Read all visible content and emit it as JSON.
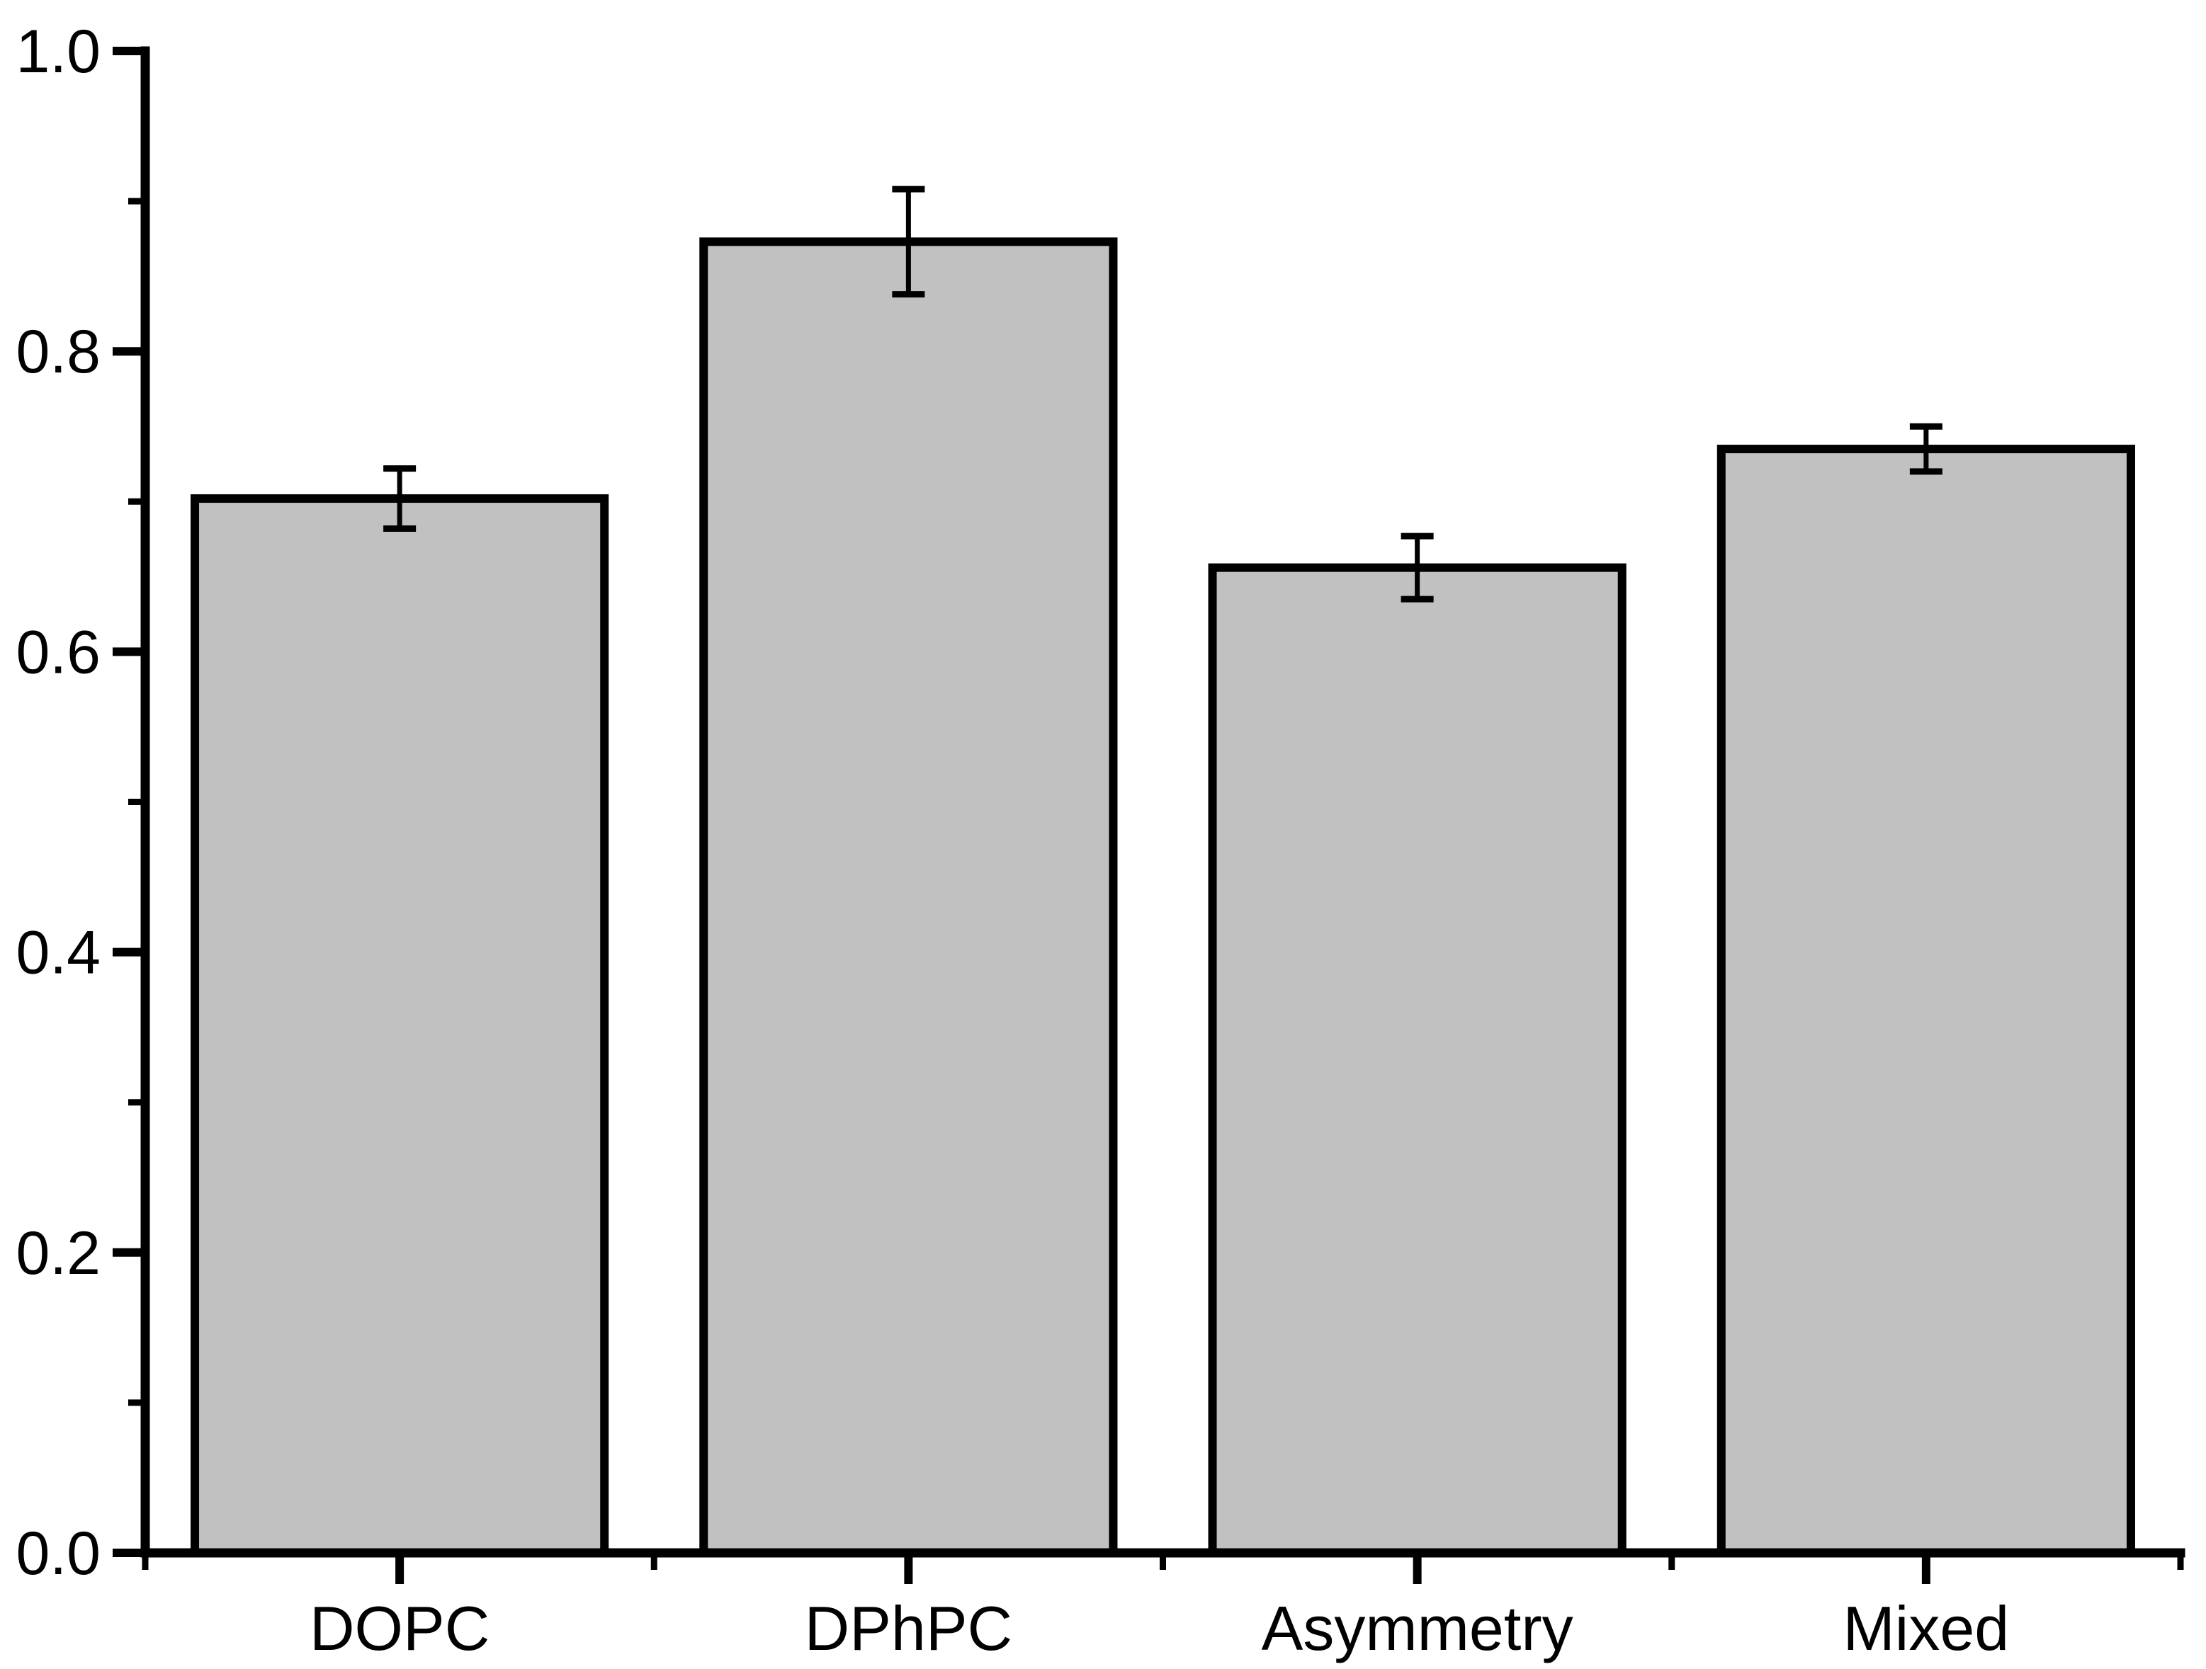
{
  "chart_data": {
    "type": "bar",
    "title": "",
    "xlabel": "",
    "ylabel": "",
    "categories": [
      "DOPC",
      "DPhPC",
      "Asymmetry",
      "Mixed"
    ],
    "values": [
      0.702,
      0.873,
      0.656,
      0.735
    ],
    "errors": [
      0.02,
      0.035,
      0.021,
      0.015
    ],
    "ylim": [
      0.0,
      1.0
    ],
    "y_major_ticks": [
      0.0,
      0.2,
      0.4,
      0.6,
      0.8,
      1.0
    ],
    "y_major_tick_labels": [
      "0.0",
      "0.2",
      "0.4",
      "0.6",
      "0.8",
      "1.0"
    ],
    "y_minor_ticks": [
      0.1,
      0.3,
      0.5,
      0.7,
      0.9
    ],
    "grid": false,
    "legend": false,
    "error_bar_style": "caps-both-ends",
    "bar_fill": "#C1C1C1",
    "bar_border": "#000000",
    "axis_color": "#000000",
    "background": "#FFFFFF"
  }
}
